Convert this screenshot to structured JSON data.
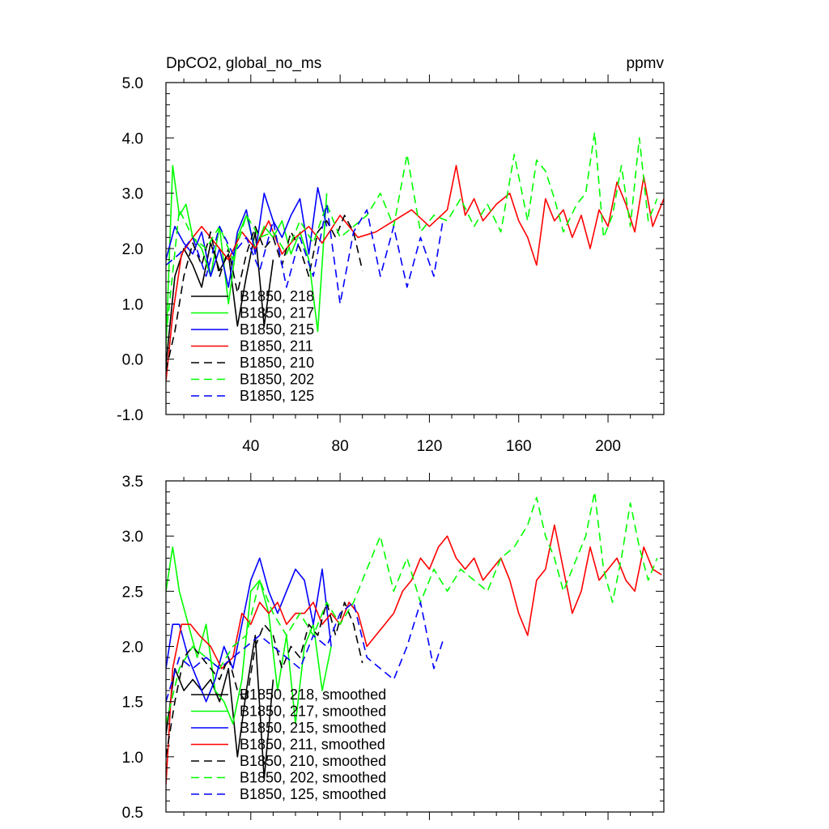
{
  "title_left": "DpCO2, global_no_ms",
  "title_right": "ppmv",
  "chart_data": [
    {
      "type": "line",
      "xlim": [
        2,
        225
      ],
      "ylim": [
        -1.0,
        5.0
      ],
      "yticks": [
        -1.0,
        0.0,
        1.0,
        2.0,
        3.0,
        4.0,
        5.0
      ],
      "ytick_labels": [
        "-1.0",
        "0.0",
        "1.0",
        "2.0",
        "3.0",
        "4.0",
        "5.0"
      ],
      "xticks": [
        40,
        80,
        120,
        160,
        200
      ],
      "xtick_labels": [
        "40",
        "80",
        "120",
        "160",
        "200"
      ],
      "legend_placement": "lower-left",
      "series": [
        {
          "name": "B1850, 218",
          "color": "#000000",
          "dash": "solid",
          "x": [
            2,
            6,
            10,
            14,
            18,
            22,
            26,
            30,
            34,
            38,
            42,
            46,
            50
          ],
          "y": [
            -0.1,
            1.5,
            2.0,
            1.7,
            1.3,
            2.1,
            1.6,
            1.9,
            0.6,
            1.5,
            2.3,
            0.6,
            1.8
          ]
        },
        {
          "name": "B1850, 217",
          "color": "#00ff00",
          "dash": "solid",
          "x": [
            2,
            5,
            8,
            11,
            14,
            18,
            22,
            26,
            30,
            34,
            38,
            42,
            46,
            50,
            54,
            58,
            62,
            66,
            70,
            74
          ],
          "y": [
            0.2,
            3.5,
            2.6,
            2.8,
            2.2,
            2.0,
            1.5,
            2.4,
            1.0,
            2.2,
            2.6,
            2.0,
            2.4,
            2.2,
            2.5,
            1.9,
            2.3,
            1.8,
            0.5,
            3.0
          ]
        },
        {
          "name": "B1850, 215",
          "color": "#0000ff",
          "dash": "solid",
          "x": [
            2,
            6,
            10,
            14,
            18,
            22,
            26,
            30,
            34,
            38,
            42,
            46,
            50,
            54,
            58,
            62,
            66,
            70,
            74
          ],
          "y": [
            1.8,
            2.4,
            2.1,
            1.9,
            2.3,
            1.5,
            2.0,
            1.3,
            2.3,
            2.7,
            1.9,
            3.0,
            2.5,
            2.2,
            2.6,
            2.9,
            1.9,
            3.1,
            2.4
          ]
        },
        {
          "name": "B1850, 211",
          "color": "#ff0000",
          "dash": "solid",
          "x": [
            2,
            5,
            9,
            14,
            18,
            24,
            30,
            36,
            42,
            48,
            54,
            60,
            66,
            72,
            80,
            88,
            96,
            104,
            112,
            120,
            128,
            132,
            136,
            140,
            144,
            150,
            156,
            160,
            164,
            168,
            172,
            176,
            180,
            184,
            188,
            192,
            196,
            200,
            204,
            208,
            212,
            216,
            220,
            225
          ],
          "y": [
            -0.4,
            0.8,
            1.9,
            2.2,
            2.4,
            2.1,
            1.8,
            2.3,
            2.0,
            2.5,
            1.9,
            2.2,
            2.4,
            2.1,
            2.6,
            2.2,
            2.3,
            2.5,
            2.7,
            2.4,
            2.7,
            3.5,
            2.6,
            2.9,
            2.5,
            2.8,
            3.0,
            2.5,
            2.2,
            1.7,
            2.9,
            2.5,
            2.7,
            2.2,
            2.6,
            2.0,
            2.7,
            2.4,
            3.2,
            2.8,
            2.3,
            3.3,
            2.4,
            2.9
          ]
        },
        {
          "name": "B1850, 210",
          "color": "#000000",
          "dash": "dashed",
          "x": [
            2,
            6,
            10,
            14,
            18,
            22,
            26,
            30,
            34,
            38,
            42,
            46,
            50,
            54,
            58,
            62,
            66,
            70,
            74,
            78,
            82,
            86,
            90
          ],
          "y": [
            -0.2,
            0.5,
            1.5,
            2.1,
            1.7,
            2.3,
            1.5,
            2.0,
            1.2,
            1.9,
            2.4,
            2.0,
            2.2,
            1.7,
            2.3,
            2.0,
            1.5,
            2.3,
            2.5,
            2.2,
            2.6,
            2.3,
            1.6
          ]
        },
        {
          "name": "B1850, 202",
          "color": "#00ff00",
          "dash": "dashed",
          "x": [
            2,
            8,
            14,
            20,
            26,
            32,
            38,
            44,
            50,
            56,
            62,
            68,
            74,
            80,
            86,
            92,
            98,
            104,
            110,
            116,
            122,
            128,
            134,
            140,
            146,
            152,
            158,
            164,
            168,
            172,
            176,
            180,
            186,
            190,
            194,
            198,
            202,
            206,
            210,
            214,
            218,
            222
          ],
          "y": [
            0.4,
            2.7,
            2.2,
            2.0,
            2.4,
            1.8,
            2.6,
            2.2,
            2.3,
            1.9,
            2.5,
            2.1,
            2.8,
            2.2,
            2.4,
            2.6,
            3.0,
            2.4,
            3.7,
            2.3,
            2.6,
            2.5,
            2.9,
            2.4,
            2.8,
            2.3,
            3.7,
            2.5,
            3.6,
            3.4,
            2.9,
            2.3,
            2.8,
            3.0,
            4.1,
            2.2,
            2.6,
            3.5,
            2.4,
            4.0,
            2.5,
            2.9
          ]
        },
        {
          "name": "B1850, 125",
          "color": "#0000ff",
          "dash": "dashed",
          "x": [
            2,
            8,
            14,
            20,
            26,
            32,
            38,
            44,
            50,
            56,
            62,
            68,
            74,
            80,
            86,
            92,
            98,
            104,
            110,
            116,
            122,
            126
          ],
          "y": [
            1.7,
            1.9,
            2.2,
            1.5,
            2.4,
            1.9,
            2.2,
            1.6,
            2.5,
            1.3,
            2.2,
            1.5,
            2.8,
            1.0,
            2.3,
            2.7,
            1.5,
            2.4,
            1.3,
            2.2,
            1.5,
            2.5
          ]
        }
      ]
    },
    {
      "type": "line",
      "xlim": [
        2,
        225
      ],
      "ylim": [
        0.5,
        3.5
      ],
      "yticks": [
        0.5,
        1.0,
        1.5,
        2.0,
        2.5,
        3.0,
        3.5
      ],
      "ytick_labels": [
        "0.5",
        "1.0",
        "1.5",
        "2.0",
        "2.5",
        "3.0",
        "3.5"
      ],
      "xticks": [
        40,
        80,
        120,
        160,
        200
      ],
      "legend_placement": "lower-left",
      "series": [
        {
          "name": "B1850, 218, smoothed",
          "color": "#000000",
          "dash": "solid",
          "x": [
            2,
            6,
            10,
            14,
            18,
            22,
            26,
            30,
            34,
            38,
            42,
            46,
            50
          ],
          "y": [
            1.2,
            1.8,
            1.6,
            1.7,
            1.6,
            1.7,
            1.5,
            1.8,
            1.0,
            1.6,
            2.1,
            0.8,
            1.7
          ]
        },
        {
          "name": "B1850, 217, smoothed",
          "color": "#00ff00",
          "dash": "solid",
          "x": [
            2,
            5,
            8,
            12,
            16,
            20,
            24,
            28,
            32,
            36,
            40,
            44,
            48,
            52,
            56,
            60,
            64,
            68,
            72,
            76
          ],
          "y": [
            2.5,
            2.9,
            2.5,
            2.2,
            1.9,
            2.2,
            1.6,
            1.5,
            1.3,
            1.7,
            2.5,
            2.6,
            2.3,
            1.6,
            2.1,
            1.3,
            2.0,
            2.2,
            1.6,
            2.0
          ]
        },
        {
          "name": "B1850, 215, smoothed",
          "color": "#0000ff",
          "dash": "solid",
          "x": [
            2,
            5,
            8,
            12,
            16,
            20,
            24,
            28,
            32,
            36,
            40,
            44,
            48,
            52,
            56,
            60,
            64,
            68,
            72,
            76
          ],
          "y": [
            1.8,
            2.2,
            2.2,
            1.9,
            1.7,
            1.5,
            1.7,
            2.0,
            1.8,
            2.2,
            2.6,
            2.8,
            2.5,
            2.3,
            2.5,
            2.7,
            2.6,
            2.2,
            2.7,
            2.0
          ]
        },
        {
          "name": "B1850, 211, smoothed",
          "color": "#ff0000",
          "dash": "solid",
          "x": [
            2,
            5,
            9,
            13,
            17,
            22,
            27,
            32,
            36,
            40,
            44,
            48,
            52,
            56,
            60,
            64,
            68,
            72,
            76,
            80,
            84,
            88,
            92,
            96,
            100,
            104,
            108,
            112,
            116,
            120,
            124,
            128,
            132,
            136,
            140,
            144,
            148,
            152,
            156,
            160,
            164,
            168,
            172,
            176,
            180,
            184,
            188,
            192,
            196,
            200,
            204,
            208,
            212,
            216,
            220,
            224
          ],
          "y": [
            0.75,
            1.8,
            2.2,
            2.2,
            2.1,
            2.0,
            1.8,
            1.9,
            2.3,
            2.2,
            2.4,
            2.3,
            2.4,
            2.2,
            2.3,
            2.3,
            2.4,
            2.2,
            2.3,
            2.2,
            2.4,
            2.3,
            2.0,
            2.1,
            2.2,
            2.3,
            2.5,
            2.6,
            2.8,
            2.7,
            2.9,
            3.0,
            2.8,
            2.7,
            2.8,
            2.6,
            2.7,
            2.8,
            2.6,
            2.3,
            2.1,
            2.6,
            2.7,
            3.1,
            2.7,
            2.3,
            2.5,
            2.9,
            2.6,
            2.7,
            2.8,
            2.6,
            2.5,
            2.9,
            2.7,
            2.65
          ]
        },
        {
          "name": "B1850, 210, smoothed",
          "color": "#000000",
          "dash": "dashed",
          "x": [
            2,
            6,
            10,
            14,
            18,
            22,
            26,
            30,
            34,
            38,
            42,
            46,
            50,
            54,
            58,
            62,
            66,
            70,
            74,
            78,
            82,
            86,
            90
          ],
          "y": [
            1.0,
            1.5,
            1.9,
            2.0,
            1.9,
            1.8,
            1.7,
            1.9,
            1.6,
            1.5,
            2.0,
            2.2,
            2.1,
            1.8,
            2.0,
            1.9,
            2.2,
            2.1,
            2.4,
            2.1,
            2.4,
            2.2,
            1.85
          ]
        },
        {
          "name": "B1850, 202, smoothed",
          "color": "#00ff00",
          "dash": "dashed",
          "x": [
            2,
            8,
            14,
            20,
            26,
            32,
            38,
            44,
            50,
            56,
            62,
            68,
            74,
            80,
            86,
            92,
            98,
            104,
            110,
            116,
            122,
            128,
            134,
            140,
            146,
            152,
            158,
            164,
            168,
            172,
            176,
            180,
            186,
            190,
            194,
            198,
            202,
            206,
            210,
            214,
            218,
            222
          ],
          "y": [
            1.3,
            1.8,
            2.0,
            1.9,
            1.8,
            2.0,
            2.1,
            2.6,
            2.3,
            2.1,
            2.3,
            2.1,
            2.4,
            2.2,
            2.4,
            2.7,
            3.0,
            2.5,
            2.8,
            2.4,
            2.7,
            2.5,
            2.7,
            2.6,
            2.5,
            2.8,
            2.9,
            3.1,
            3.35,
            3.0,
            2.8,
            2.5,
            2.8,
            3.0,
            3.4,
            2.7,
            2.4,
            2.8,
            3.3,
            2.9,
            2.6,
            2.8
          ]
        },
        {
          "name": "B1850, 125, smoothed",
          "color": "#0000ff",
          "dash": "dashed",
          "x": [
            2,
            8,
            14,
            20,
            26,
            32,
            38,
            44,
            50,
            56,
            62,
            68,
            74,
            80,
            86,
            92,
            98,
            104,
            110,
            116,
            122,
            126
          ],
          "y": [
            1.5,
            1.9,
            1.8,
            1.9,
            1.8,
            1.9,
            2.0,
            2.1,
            2.0,
            1.9,
            1.8,
            2.1,
            2.0,
            2.3,
            2.4,
            1.9,
            1.8,
            1.7,
            2.0,
            2.4,
            1.8,
            2.05
          ]
        }
      ]
    }
  ]
}
